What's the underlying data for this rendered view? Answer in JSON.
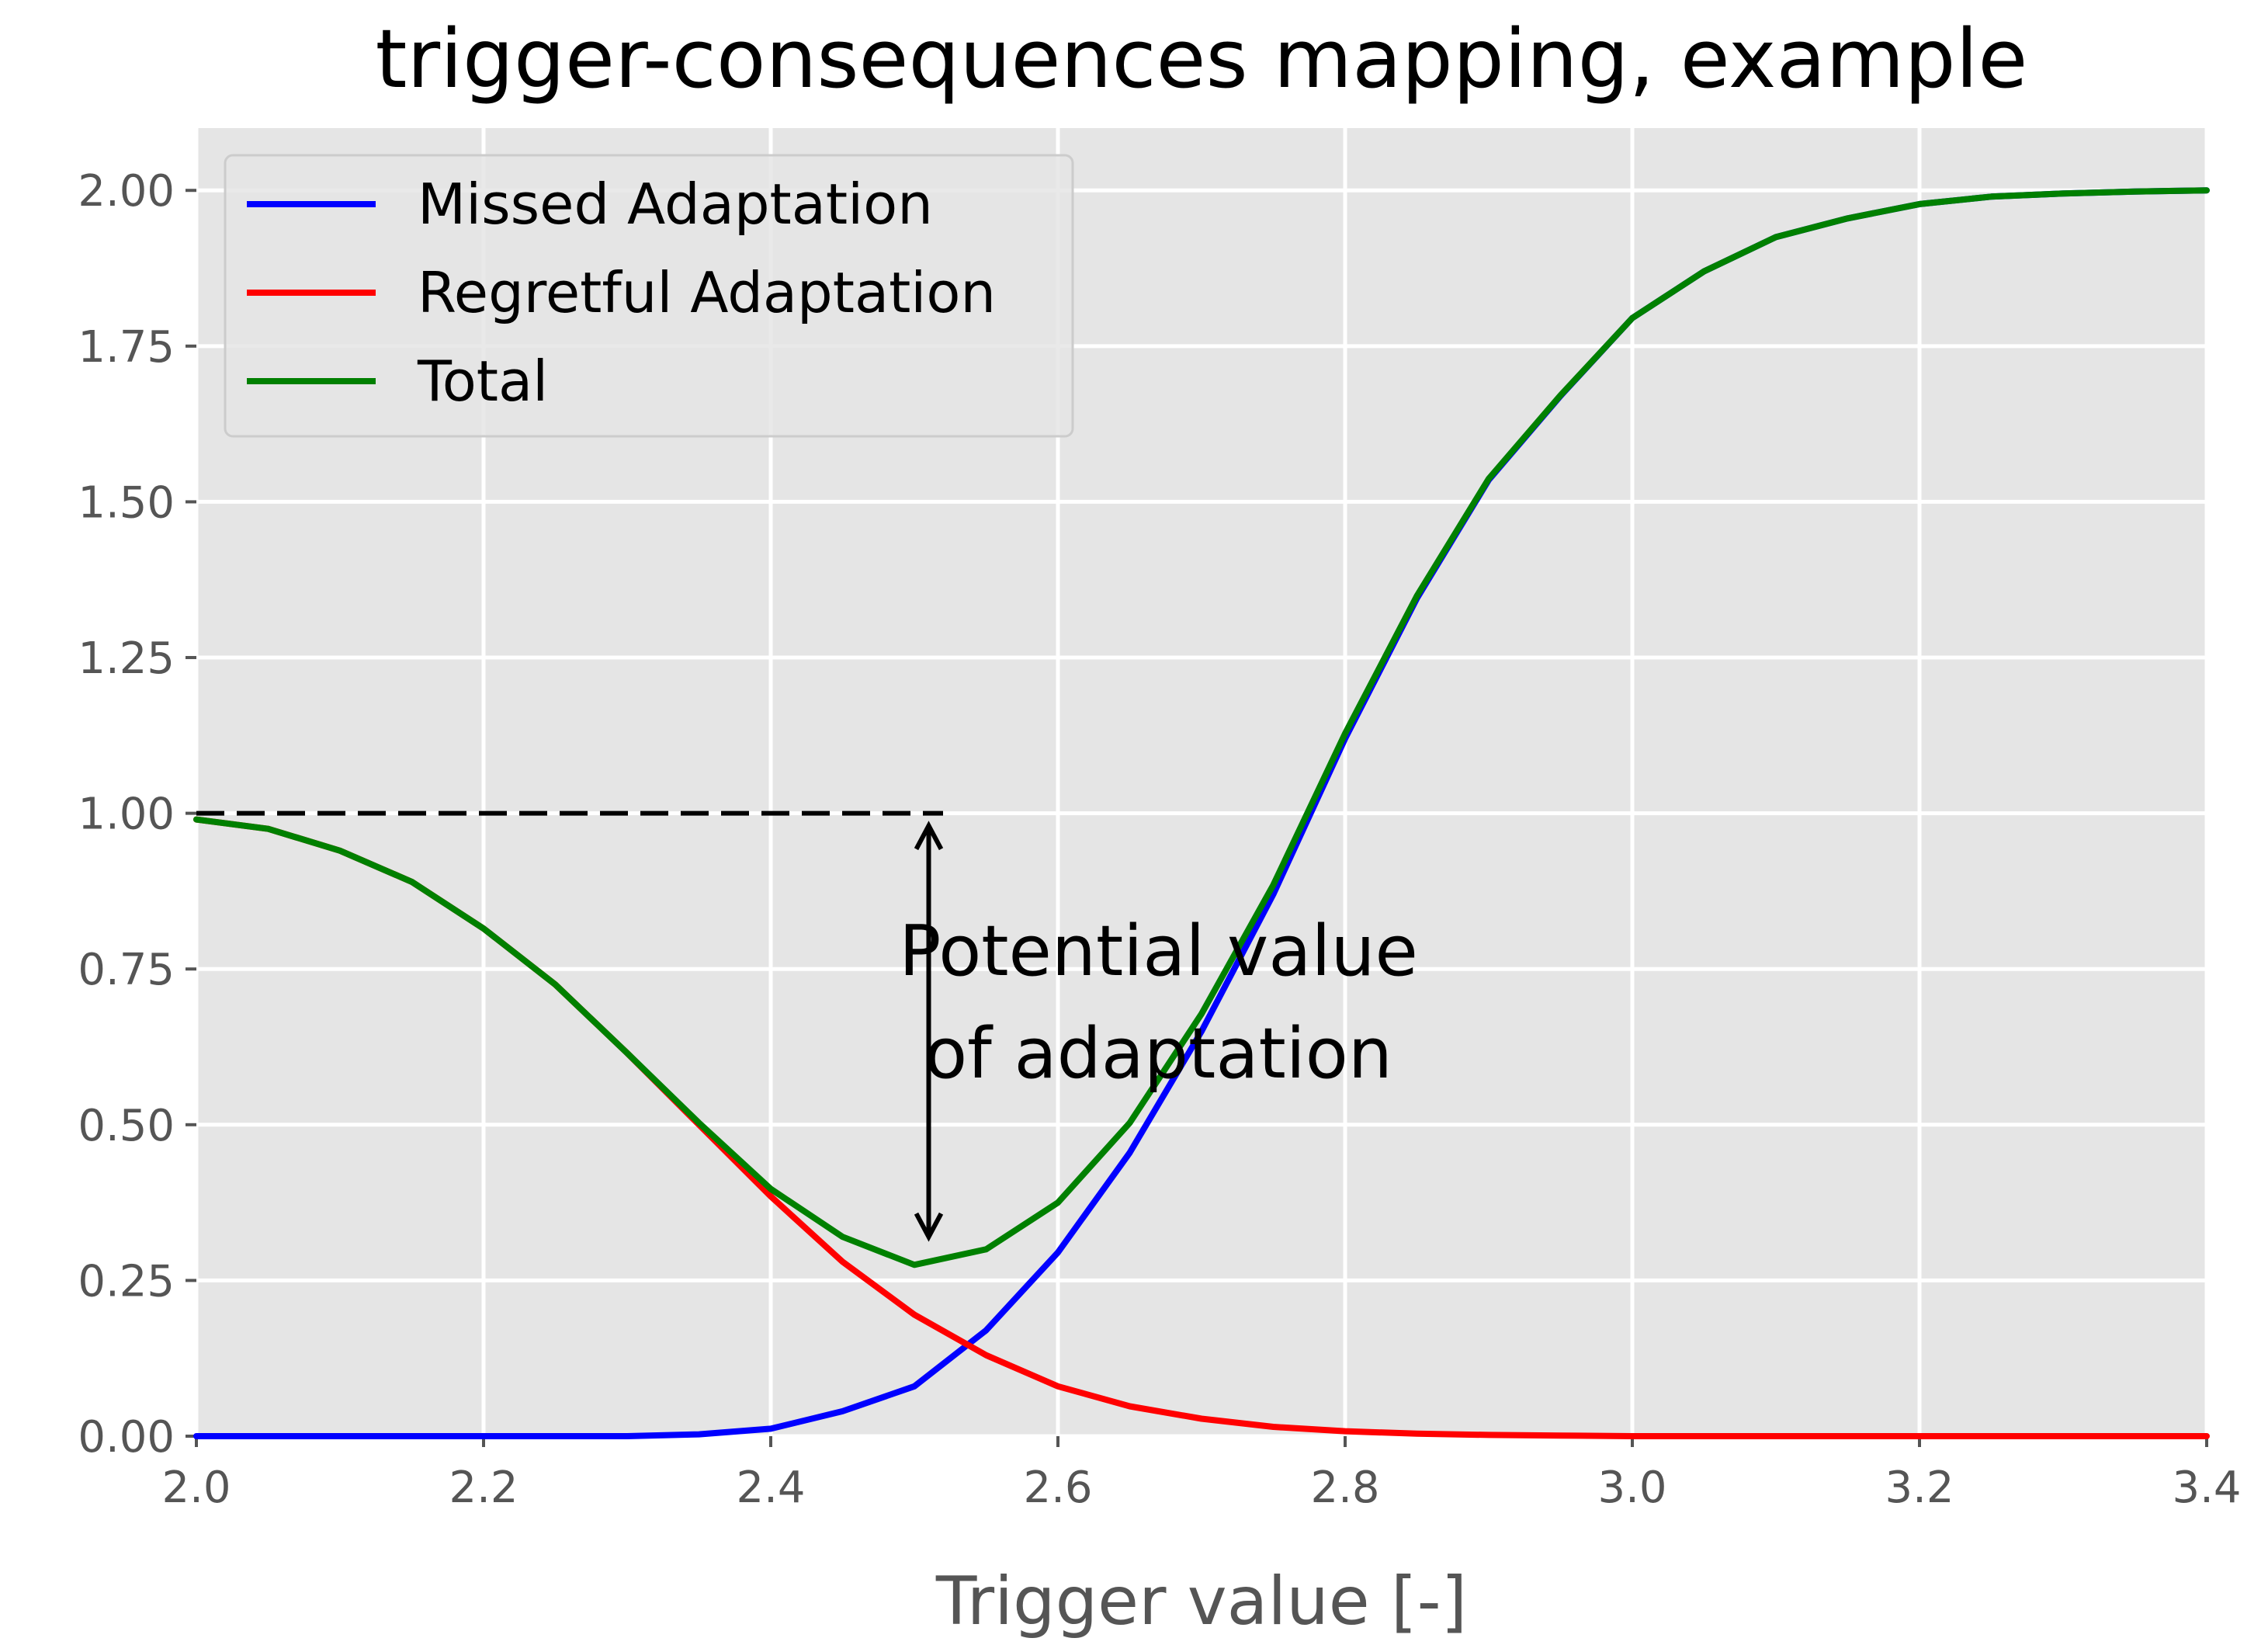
{
  "chart_data": {
    "type": "line",
    "title": "trigger-consequences mapping, example",
    "xlabel": "Trigger value [-]",
    "ylabel": "",
    "xlim": [
      2.0,
      3.4
    ],
    "ylim": [
      0.0,
      2.1
    ],
    "x_ticks": [
      "2.0",
      "2.2",
      "2.4",
      "2.6",
      "2.8",
      "3.0",
      "3.2",
      "3.4"
    ],
    "y_ticks": [
      "0.00",
      "0.25",
      "0.50",
      "0.75",
      "1.00",
      "1.25",
      "1.50",
      "1.75",
      "2.00"
    ],
    "grid": true,
    "legend_position": "top-left",
    "x": [
      2.0,
      2.05,
      2.1,
      2.15,
      2.2,
      2.25,
      2.3,
      2.35,
      2.4,
      2.45,
      2.5,
      2.55,
      2.6,
      2.65,
      2.7,
      2.75,
      2.8,
      2.85,
      2.9,
      2.95,
      3.0,
      3.05,
      3.1,
      3.15,
      3.2,
      3.25,
      3.3,
      3.35,
      3.4
    ],
    "series": [
      {
        "name": "Missed Adaptation",
        "color": "#0000ff",
        "values": [
          0.0,
          0.0,
          0.0,
          0.0,
          0.0,
          0.0,
          0.0,
          0.003,
          0.012,
          0.04,
          0.08,
          0.17,
          0.295,
          0.455,
          0.65,
          0.87,
          1.12,
          1.345,
          1.535,
          1.67,
          1.795,
          1.87,
          1.925,
          1.955,
          1.978,
          1.99,
          1.995,
          1.998,
          2.0
        ]
      },
      {
        "name": "Regretful Adaptation",
        "color": "#ff0000",
        "values": [
          0.99,
          0.975,
          0.94,
          0.89,
          0.815,
          0.725,
          0.615,
          0.5,
          0.385,
          0.28,
          0.195,
          0.13,
          0.08,
          0.048,
          0.028,
          0.015,
          0.008,
          0.004,
          0.002,
          0.001,
          0.0,
          0.0,
          0.0,
          0.0,
          0.0,
          0.0,
          0.0,
          0.0,
          0.0
        ]
      },
      {
        "name": "Total",
        "color": "#008000",
        "values": [
          0.99,
          0.975,
          0.94,
          0.89,
          0.815,
          0.725,
          0.615,
          0.503,
          0.397,
          0.32,
          0.275,
          0.3,
          0.375,
          0.503,
          0.678,
          0.885,
          1.128,
          1.349,
          1.537,
          1.671,
          1.795,
          1.87,
          1.925,
          1.955,
          1.978,
          1.99,
          1.995,
          1.998,
          2.0
        ]
      }
    ],
    "reference_line": {
      "y": 1.0,
      "x_start": 2.0,
      "x_end": 2.52,
      "style": "dashed"
    },
    "annotation": {
      "lines": [
        "Potential value",
        "of adaptation"
      ],
      "arrow_x": 2.51,
      "arrow_from_y": 0.98,
      "arrow_to_y": 0.32,
      "text_x": 2.67,
      "text_y": 0.74
    }
  }
}
